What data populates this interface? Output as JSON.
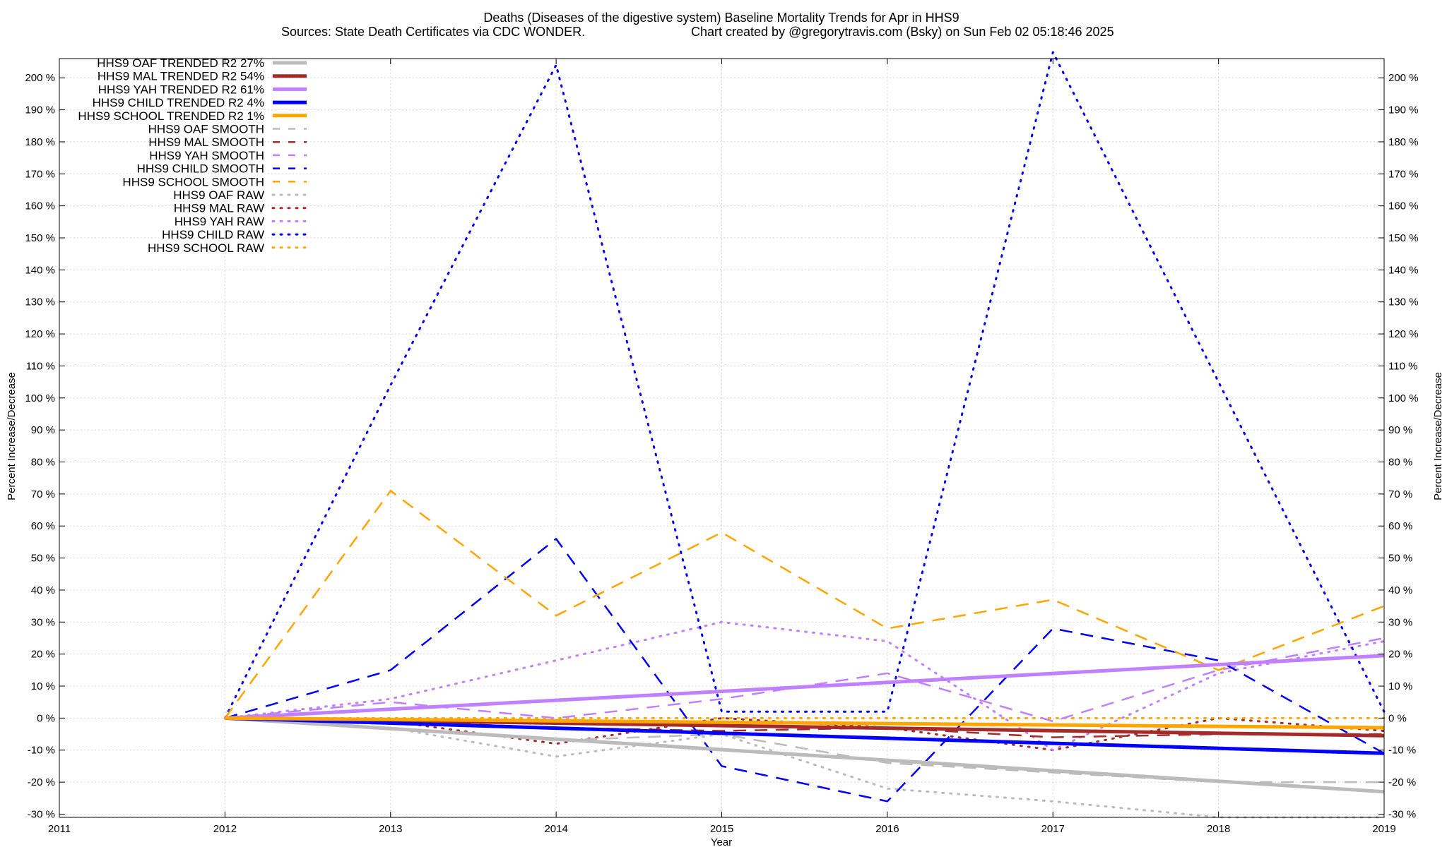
{
  "chart_data": {
    "type": "line",
    "title_line1": "Deaths (Diseases of the digestive system)  Baseline Mortality Trends for Apr in HHS9",
    "title_line2_left": "Sources: State Death Certificates via CDC WONDER.",
    "title_line2_right": "Chart created by @gregorytravis.com (Bsky) on Sun Feb 02 05:18:46 2025",
    "xlabel": "Year",
    "ylabel": "Percent Increase/Decrease",
    "xlim": [
      2011,
      2019
    ],
    "ylim": [
      -31,
      206
    ],
    "x_ticks": [
      "2011",
      "2012",
      "2013",
      "2014",
      "2015",
      "2016",
      "2017",
      "2018",
      "2019"
    ],
    "y_ticks": [
      {
        "value": -30,
        "label": "-30 %"
      },
      {
        "value": -20,
        "label": "-20 %"
      },
      {
        "value": -10,
        "label": "-10 %"
      },
      {
        "value": 0,
        "label": "0 %"
      },
      {
        "value": 10,
        "label": "10 %"
      },
      {
        "value": 20,
        "label": "20 %"
      },
      {
        "value": 30,
        "label": "30 %"
      },
      {
        "value": 40,
        "label": "40 %"
      },
      {
        "value": 50,
        "label": "50 %"
      },
      {
        "value": 60,
        "label": "60 %"
      },
      {
        "value": 70,
        "label": "70 %"
      },
      {
        "value": 80,
        "label": "80 %"
      },
      {
        "value": 90,
        "label": "90 %"
      },
      {
        "value": 100,
        "label": "100 %"
      },
      {
        "value": 110,
        "label": "110 %"
      },
      {
        "value": 120,
        "label": "120 %"
      },
      {
        "value": 130,
        "label": "130 %"
      },
      {
        "value": 140,
        "label": "140 %"
      },
      {
        "value": 150,
        "label": "150 %"
      },
      {
        "value": 160,
        "label": "160 %"
      },
      {
        "value": 170,
        "label": "170 %"
      },
      {
        "value": 180,
        "label": "180 %"
      },
      {
        "value": 190,
        "label": "190 %"
      },
      {
        "value": 200,
        "label": "200 %"
      }
    ],
    "grid": true,
    "legend_position": "top-left",
    "series": [
      {
        "name": "HHS9 OAF TRENDED R2  27%",
        "color": "#bbbbbb",
        "style": "solid",
        "x": [
          2012,
          2019
        ],
        "values": [
          0,
          -23
        ]
      },
      {
        "name": "HHS9 MAL TRENDED R2  54%",
        "color": "#a52a2a",
        "style": "solid",
        "x": [
          2012,
          2019
        ],
        "values": [
          0,
          -5.5
        ]
      },
      {
        "name": "HHS9 YAH TRENDED R2  61%",
        "color": "#c080ff",
        "style": "solid",
        "x": [
          2012,
          2019
        ],
        "values": [
          0,
          19.5
        ]
      },
      {
        "name": "HHS9 CHILD TRENDED R2   4%",
        "color": "#0000ff",
        "style": "solid",
        "x": [
          2012,
          2019
        ],
        "values": [
          0,
          -11
        ]
      },
      {
        "name": "HHS9 SCHOOL TRENDED R2   1%",
        "color": "#ffa500",
        "style": "solid",
        "x": [
          2012,
          2019
        ],
        "values": [
          0,
          -3
        ]
      },
      {
        "name": "HHS9 OAF SMOOTH",
        "color": "#bbbbbb",
        "style": "dashed",
        "x": [
          2012,
          2013,
          2014,
          2015,
          2016,
          2017,
          2018,
          2019
        ],
        "values": [
          0,
          -3,
          -7,
          -5,
          -14,
          -17,
          -20,
          -20
        ]
      },
      {
        "name": "HHS9 MAL SMOOTH",
        "color": "#a52a2a",
        "style": "dashed",
        "x": [
          2012,
          2013,
          2014,
          2015,
          2016,
          2017,
          2018,
          2019
        ],
        "values": [
          0,
          -1,
          -3,
          -4,
          -3,
          -6,
          -5,
          -5
        ]
      },
      {
        "name": "HHS9 YAH SMOOTH",
        "color": "#c080ff",
        "style": "dashed",
        "x": [
          2012,
          2013,
          2014,
          2015,
          2016,
          2017,
          2018,
          2019
        ],
        "values": [
          0,
          5,
          0,
          6,
          14,
          -1,
          15,
          25
        ]
      },
      {
        "name": "HHS9 CHILD SMOOTH",
        "color": "#0000ff",
        "style": "dashed",
        "x": [
          2012,
          2013,
          2014,
          2015,
          2016,
          2017,
          2018,
          2019
        ],
        "values": [
          0,
          15,
          56,
          -15,
          -26,
          28,
          18,
          -11
        ]
      },
      {
        "name": "HHS9 SCHOOL SMOOTH",
        "color": "#ffa500",
        "style": "dashed",
        "x": [
          2012,
          2013,
          2014,
          2015,
          2016,
          2017,
          2018,
          2019
        ],
        "values": [
          0,
          71,
          32,
          58,
          28,
          37,
          15,
          35
        ]
      },
      {
        "name": "HHS9 OAF RAW",
        "color": "#bbbbbb",
        "style": "dotted",
        "x": [
          2012,
          2013,
          2014,
          2015,
          2016,
          2017,
          2018,
          2019
        ],
        "values": [
          0,
          -3,
          -12,
          -5,
          -22,
          -26,
          -31,
          -31
        ]
      },
      {
        "name": "HHS9 MAL RAW",
        "color": "#a52a2a",
        "style": "dotted",
        "x": [
          2012,
          2013,
          2014,
          2015,
          2016,
          2017,
          2018,
          2019
        ],
        "values": [
          0,
          -1,
          -8,
          0,
          -3,
          -10,
          0,
          -4
        ]
      },
      {
        "name": "HHS9 YAH RAW",
        "color": "#c080ff",
        "style": "dotted",
        "x": [
          2012,
          2013,
          2014,
          2015,
          2016,
          2017,
          2018,
          2019
        ],
        "values": [
          0,
          6,
          18,
          30,
          24,
          -10,
          14,
          24
        ]
      },
      {
        "name": "HHS9 CHILD RAW",
        "color": "#0000ff",
        "style": "dotted",
        "x": [
          2012,
          2013,
          2014,
          2015,
          2016,
          2017,
          2018,
          2019
        ],
        "values": [
          0,
          104,
          204,
          2,
          2,
          208,
          105,
          2
        ]
      },
      {
        "name": "HHS9 SCHOOL RAW",
        "color": "#ffa500",
        "style": "dotted",
        "x": [
          2012,
          2013,
          2014,
          2015,
          2016,
          2017,
          2018,
          2019
        ],
        "values": [
          0,
          0,
          0,
          0,
          0,
          0,
          0,
          0
        ]
      }
    ]
  }
}
